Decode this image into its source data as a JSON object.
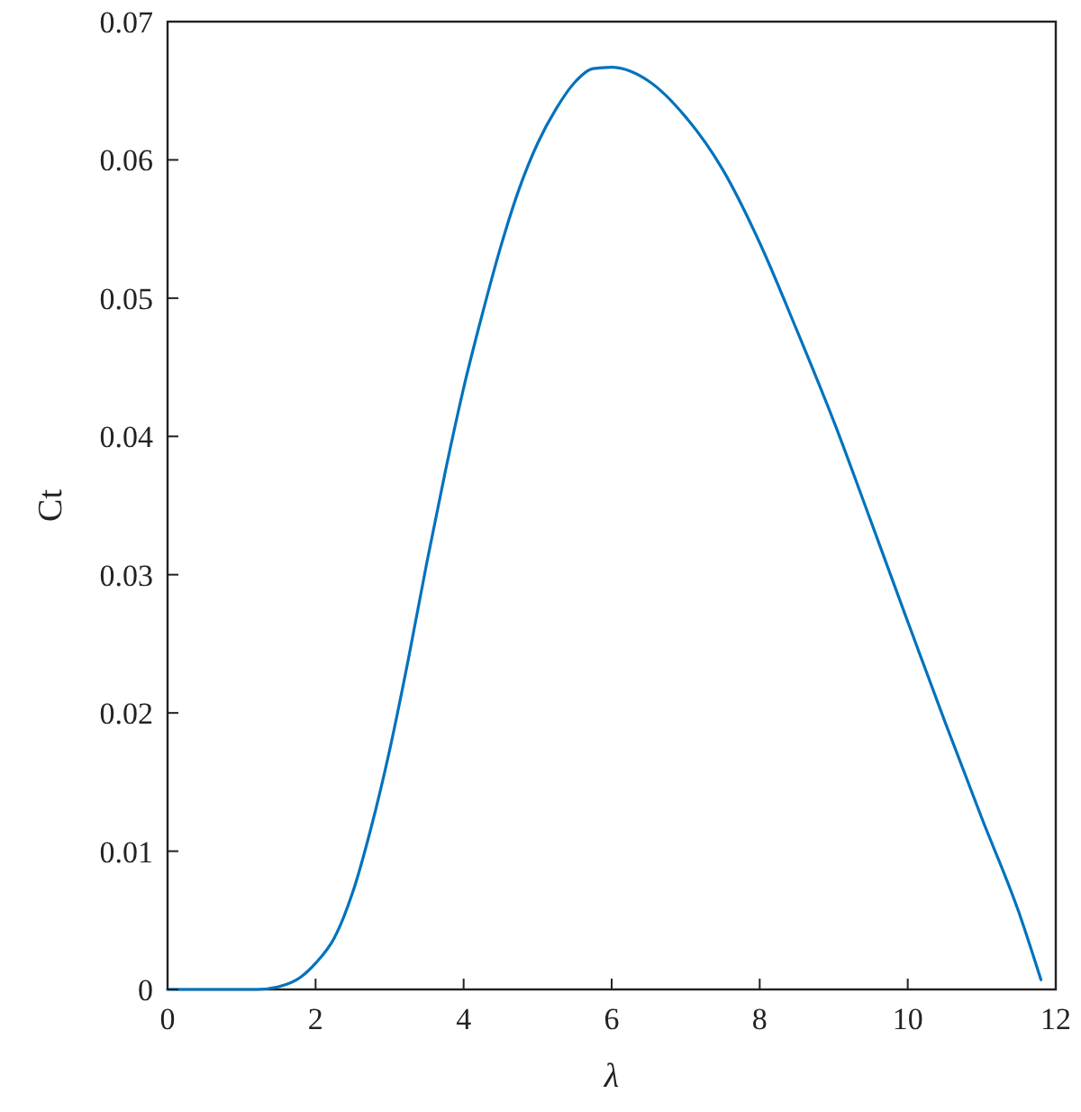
{
  "chart_data": {
    "type": "line",
    "xlabel": "λ",
    "ylabel": "Ct",
    "xlim": [
      0,
      12
    ],
    "ylim": [
      0,
      0.07
    ],
    "xticks": [
      0,
      2,
      4,
      6,
      8,
      10,
      12
    ],
    "yticks": [
      0,
      0.01,
      0.02,
      0.03,
      0.04,
      0.05,
      0.06,
      0.07
    ],
    "grid": false,
    "marker": "none",
    "line_style": "solid",
    "series": [
      {
        "color": "#0072bd",
        "x": [
          0,
          0.6,
          1.2,
          1.5,
          1.8,
          2,
          2.25,
          2.5,
          2.75,
          3,
          3.25,
          3.5,
          3.75,
          4,
          4.25,
          4.5,
          4.75,
          5,
          5.25,
          5.5,
          5.75,
          6,
          6.5,
          7,
          7.5,
          8,
          8.5,
          9,
          9.5,
          10,
          10.5,
          11,
          11.5,
          11.8
        ],
        "values": [
          0,
          0,
          0,
          0.0002,
          0.0009,
          0.0019,
          0.0037,
          0.007,
          0.0117,
          0.0173,
          0.0238,
          0.0308,
          0.0374,
          0.0435,
          0.0488,
          0.0537,
          0.0579,
          0.0612,
          0.0637,
          0.0656,
          0.0666,
          0.0667,
          0.0657,
          0.0631,
          0.0593,
          0.054,
          0.0477,
          0.0411,
          0.0339,
          0.0266,
          0.0194,
          0.0124,
          0.0056,
          0.0007
        ]
      }
    ]
  }
}
